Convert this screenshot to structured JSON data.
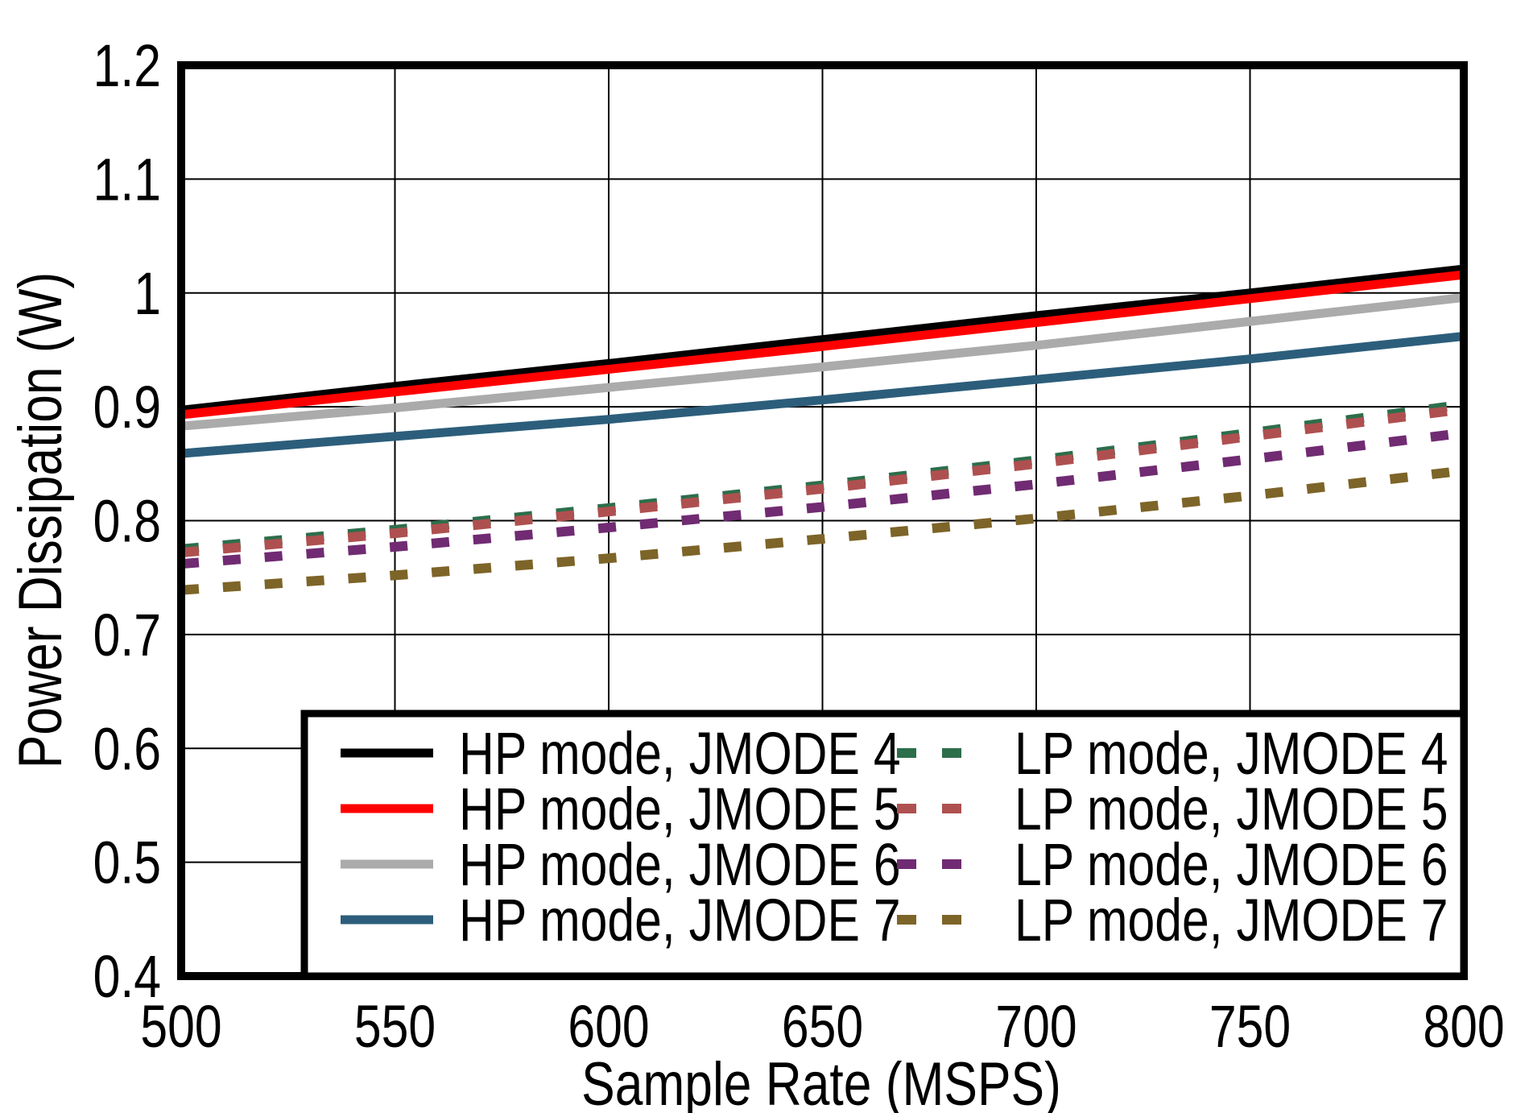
{
  "page": {
    "background": "#ffffff"
  },
  "chart_data": {
    "type": "line",
    "title": "",
    "xlabel": "Sample Rate (MSPS)",
    "ylabel": "Power Dissipation (W)",
    "xlim": [
      500,
      800
    ],
    "ylim": [
      0.4,
      1.2
    ],
    "grid": true,
    "legend_position": "inside-bottom",
    "x_ticks": [
      {
        "v": 500,
        "label": "500"
      },
      {
        "v": 550,
        "label": "550"
      },
      {
        "v": 600,
        "label": "600"
      },
      {
        "v": 650,
        "label": "650"
      },
      {
        "v": 700,
        "label": "700"
      },
      {
        "v": 750,
        "label": "750"
      },
      {
        "v": 800,
        "label": "800"
      }
    ],
    "y_ticks": [
      {
        "v": 0.4,
        "label": "0.4"
      },
      {
        "v": 0.5,
        "label": "0.5"
      },
      {
        "v": 0.6,
        "label": "0.6"
      },
      {
        "v": 0.7,
        "label": "0.7"
      },
      {
        "v": 0.8,
        "label": "0.8"
      },
      {
        "v": 0.9,
        "label": "0.9"
      },
      {
        "v": 1.0,
        "label": "1"
      },
      {
        "v": 1.1,
        "label": "1.1"
      },
      {
        "v": 1.2,
        "label": "1.2"
      }
    ],
    "x": [
      500,
      550,
      600,
      650,
      700,
      750,
      800
    ],
    "series": [
      {
        "id": "hp-jmode4",
        "name": "HP mode, JMODE 4",
        "color": "#000000",
        "style": "solid",
        "values": [
          0.897,
          0.918,
          0.938,
          0.959,
          0.98,
          1.0,
          1.021
        ]
      },
      {
        "id": "hp-jmode5",
        "name": "HP mode, JMODE 5",
        "color": "#ff0000",
        "style": "solid",
        "values": [
          0.893,
          0.913,
          0.933,
          0.953,
          0.974,
          0.995,
          1.016
        ]
      },
      {
        "id": "hp-jmode6",
        "name": "HP mode, JMODE 6",
        "color": "#ababab",
        "style": "solid",
        "values": [
          0.883,
          0.899,
          0.917,
          0.935,
          0.954,
          0.975,
          0.996
        ]
      },
      {
        "id": "hp-jmode7",
        "name": "HP mode, JMODE 7",
        "color": "#2c5e7b",
        "style": "solid",
        "values": [
          0.859,
          0.874,
          0.889,
          0.906,
          0.924,
          0.942,
          0.962
        ]
      },
      {
        "id": "lp-jmode4",
        "name": "LP mode, JMODE 4",
        "color": "#2d6e4b",
        "style": "dashed",
        "values": [
          0.775,
          0.792,
          0.811,
          0.831,
          0.853,
          0.877,
          0.902
        ]
      },
      {
        "id": "lp-jmode5",
        "name": "LP mode, JMODE 5",
        "color": "#af5050",
        "style": "dashed",
        "values": [
          0.772,
          0.789,
          0.808,
          0.828,
          0.85,
          0.874,
          0.898
        ]
      },
      {
        "id": "lp-jmode6",
        "name": "LP mode, JMODE 6",
        "color": "#702b72",
        "style": "dashed",
        "values": [
          0.762,
          0.777,
          0.794,
          0.812,
          0.832,
          0.854,
          0.877
        ]
      },
      {
        "id": "lp-jmode7",
        "name": "LP mode, JMODE 7",
        "color": "#7d6428",
        "style": "dashed",
        "values": [
          0.739,
          0.752,
          0.767,
          0.784,
          0.802,
          0.822,
          0.844
        ]
      }
    ]
  }
}
